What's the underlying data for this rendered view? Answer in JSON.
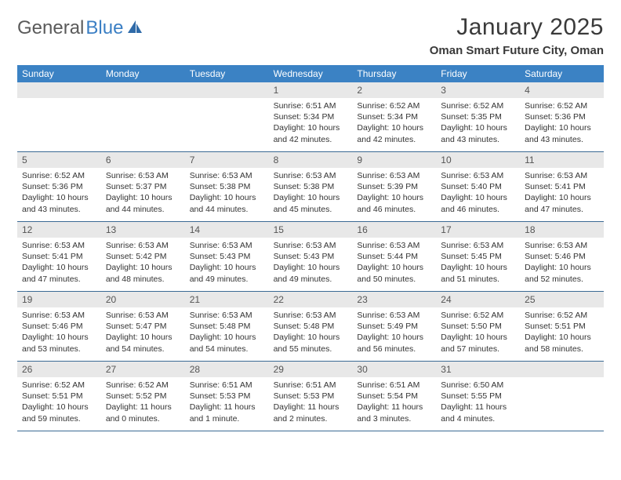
{
  "brand": {
    "part1": "General",
    "part2": "Blue"
  },
  "title": "January 2025",
  "location": "Oman Smart Future City, Oman",
  "colors": {
    "header_bg": "#3b82c4",
    "header_text": "#ffffff",
    "daynum_bg": "#e8e8e8",
    "rule": "#3b6a94",
    "brand_gray": "#5a5a5a",
    "brand_blue": "#3b7fc4"
  },
  "daysOfWeek": [
    "Sunday",
    "Monday",
    "Tuesday",
    "Wednesday",
    "Thursday",
    "Friday",
    "Saturday"
  ],
  "weeks": [
    [
      {
        "n": "",
        "sr": "",
        "ss": "",
        "dl": ""
      },
      {
        "n": "",
        "sr": "",
        "ss": "",
        "dl": ""
      },
      {
        "n": "",
        "sr": "",
        "ss": "",
        "dl": ""
      },
      {
        "n": "1",
        "sr": "Sunrise: 6:51 AM",
        "ss": "Sunset: 5:34 PM",
        "dl": "Daylight: 10 hours and 42 minutes."
      },
      {
        "n": "2",
        "sr": "Sunrise: 6:52 AM",
        "ss": "Sunset: 5:34 PM",
        "dl": "Daylight: 10 hours and 42 minutes."
      },
      {
        "n": "3",
        "sr": "Sunrise: 6:52 AM",
        "ss": "Sunset: 5:35 PM",
        "dl": "Daylight: 10 hours and 43 minutes."
      },
      {
        "n": "4",
        "sr": "Sunrise: 6:52 AM",
        "ss": "Sunset: 5:36 PM",
        "dl": "Daylight: 10 hours and 43 minutes."
      }
    ],
    [
      {
        "n": "5",
        "sr": "Sunrise: 6:52 AM",
        "ss": "Sunset: 5:36 PM",
        "dl": "Daylight: 10 hours and 43 minutes."
      },
      {
        "n": "6",
        "sr": "Sunrise: 6:53 AM",
        "ss": "Sunset: 5:37 PM",
        "dl": "Daylight: 10 hours and 44 minutes."
      },
      {
        "n": "7",
        "sr": "Sunrise: 6:53 AM",
        "ss": "Sunset: 5:38 PM",
        "dl": "Daylight: 10 hours and 44 minutes."
      },
      {
        "n": "8",
        "sr": "Sunrise: 6:53 AM",
        "ss": "Sunset: 5:38 PM",
        "dl": "Daylight: 10 hours and 45 minutes."
      },
      {
        "n": "9",
        "sr": "Sunrise: 6:53 AM",
        "ss": "Sunset: 5:39 PM",
        "dl": "Daylight: 10 hours and 46 minutes."
      },
      {
        "n": "10",
        "sr": "Sunrise: 6:53 AM",
        "ss": "Sunset: 5:40 PM",
        "dl": "Daylight: 10 hours and 46 minutes."
      },
      {
        "n": "11",
        "sr": "Sunrise: 6:53 AM",
        "ss": "Sunset: 5:41 PM",
        "dl": "Daylight: 10 hours and 47 minutes."
      }
    ],
    [
      {
        "n": "12",
        "sr": "Sunrise: 6:53 AM",
        "ss": "Sunset: 5:41 PM",
        "dl": "Daylight: 10 hours and 47 minutes."
      },
      {
        "n": "13",
        "sr": "Sunrise: 6:53 AM",
        "ss": "Sunset: 5:42 PM",
        "dl": "Daylight: 10 hours and 48 minutes."
      },
      {
        "n": "14",
        "sr": "Sunrise: 6:53 AM",
        "ss": "Sunset: 5:43 PM",
        "dl": "Daylight: 10 hours and 49 minutes."
      },
      {
        "n": "15",
        "sr": "Sunrise: 6:53 AM",
        "ss": "Sunset: 5:43 PM",
        "dl": "Daylight: 10 hours and 49 minutes."
      },
      {
        "n": "16",
        "sr": "Sunrise: 6:53 AM",
        "ss": "Sunset: 5:44 PM",
        "dl": "Daylight: 10 hours and 50 minutes."
      },
      {
        "n": "17",
        "sr": "Sunrise: 6:53 AM",
        "ss": "Sunset: 5:45 PM",
        "dl": "Daylight: 10 hours and 51 minutes."
      },
      {
        "n": "18",
        "sr": "Sunrise: 6:53 AM",
        "ss": "Sunset: 5:46 PM",
        "dl": "Daylight: 10 hours and 52 minutes."
      }
    ],
    [
      {
        "n": "19",
        "sr": "Sunrise: 6:53 AM",
        "ss": "Sunset: 5:46 PM",
        "dl": "Daylight: 10 hours and 53 minutes."
      },
      {
        "n": "20",
        "sr": "Sunrise: 6:53 AM",
        "ss": "Sunset: 5:47 PM",
        "dl": "Daylight: 10 hours and 54 minutes."
      },
      {
        "n": "21",
        "sr": "Sunrise: 6:53 AM",
        "ss": "Sunset: 5:48 PM",
        "dl": "Daylight: 10 hours and 54 minutes."
      },
      {
        "n": "22",
        "sr": "Sunrise: 6:53 AM",
        "ss": "Sunset: 5:48 PM",
        "dl": "Daylight: 10 hours and 55 minutes."
      },
      {
        "n": "23",
        "sr": "Sunrise: 6:53 AM",
        "ss": "Sunset: 5:49 PM",
        "dl": "Daylight: 10 hours and 56 minutes."
      },
      {
        "n": "24",
        "sr": "Sunrise: 6:52 AM",
        "ss": "Sunset: 5:50 PM",
        "dl": "Daylight: 10 hours and 57 minutes."
      },
      {
        "n": "25",
        "sr": "Sunrise: 6:52 AM",
        "ss": "Sunset: 5:51 PM",
        "dl": "Daylight: 10 hours and 58 minutes."
      }
    ],
    [
      {
        "n": "26",
        "sr": "Sunrise: 6:52 AM",
        "ss": "Sunset: 5:51 PM",
        "dl": "Daylight: 10 hours and 59 minutes."
      },
      {
        "n": "27",
        "sr": "Sunrise: 6:52 AM",
        "ss": "Sunset: 5:52 PM",
        "dl": "Daylight: 11 hours and 0 minutes."
      },
      {
        "n": "28",
        "sr": "Sunrise: 6:51 AM",
        "ss": "Sunset: 5:53 PM",
        "dl": "Daylight: 11 hours and 1 minute."
      },
      {
        "n": "29",
        "sr": "Sunrise: 6:51 AM",
        "ss": "Sunset: 5:53 PM",
        "dl": "Daylight: 11 hours and 2 minutes."
      },
      {
        "n": "30",
        "sr": "Sunrise: 6:51 AM",
        "ss": "Sunset: 5:54 PM",
        "dl": "Daylight: 11 hours and 3 minutes."
      },
      {
        "n": "31",
        "sr": "Sunrise: 6:50 AM",
        "ss": "Sunset: 5:55 PM",
        "dl": "Daylight: 11 hours and 4 minutes."
      },
      {
        "n": "",
        "sr": "",
        "ss": "",
        "dl": ""
      }
    ]
  ]
}
